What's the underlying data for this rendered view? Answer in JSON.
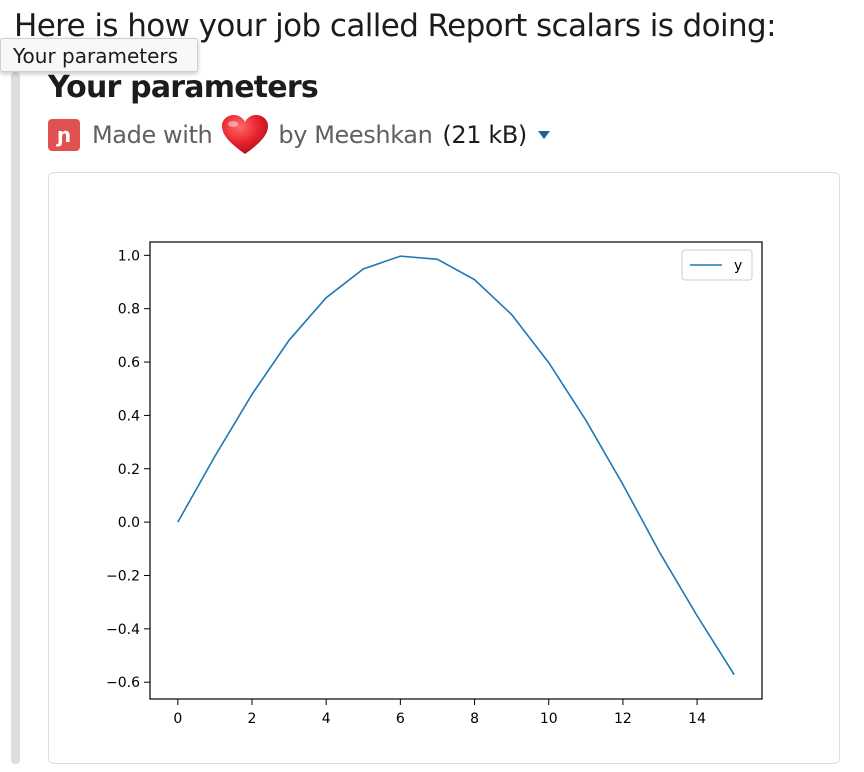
{
  "message": {
    "text": "Here is how your job called Report scalars is doing:"
  },
  "tooltip": {
    "text": "Your parameters"
  },
  "attachment": {
    "title": "Your parameters",
    "made_with": "Made with",
    "by": "by Meeshkan",
    "size": "(21 kB)",
    "app_icon_glyph": "ɲ",
    "icons": [
      "app-logo-icon",
      "heart-icon",
      "caret-down-icon"
    ],
    "colors": {
      "app_icon": "#e0524f",
      "caret": "#1264a3",
      "series": "#1f77b4"
    }
  },
  "chart_data": {
    "type": "line",
    "title": "",
    "xlabel": "",
    "ylabel": "",
    "x": [
      0,
      1,
      2,
      3,
      4,
      5,
      6,
      7,
      8,
      9,
      10,
      11,
      12,
      13,
      14,
      15
    ],
    "series": [
      {
        "name": "y",
        "values": [
          0.0,
          0.247,
          0.479,
          0.682,
          0.841,
          0.949,
          0.997,
          0.985,
          0.909,
          0.778,
          0.598,
          0.382,
          0.141,
          -0.116,
          -0.351,
          -0.572
        ]
      }
    ],
    "xlim": [
      -0.75,
      15.75
    ],
    "ylim": [
      -0.663,
      1.05
    ],
    "xticks": [
      0,
      2,
      4,
      6,
      8,
      10,
      12,
      14
    ],
    "xtick_labels": [
      "0",
      "2",
      "4",
      "6",
      "8",
      "10",
      "12",
      "14"
    ],
    "yticks": [
      -0.6,
      -0.4,
      -0.2,
      0.0,
      0.2,
      0.4,
      0.6,
      0.8,
      1.0
    ],
    "ytick_labels": [
      "−0.6",
      "−0.4",
      "−0.2",
      "0.0",
      "0.2",
      "0.4",
      "0.6",
      "0.8",
      "1.0"
    ],
    "grid": false,
    "legend": "top-right"
  }
}
